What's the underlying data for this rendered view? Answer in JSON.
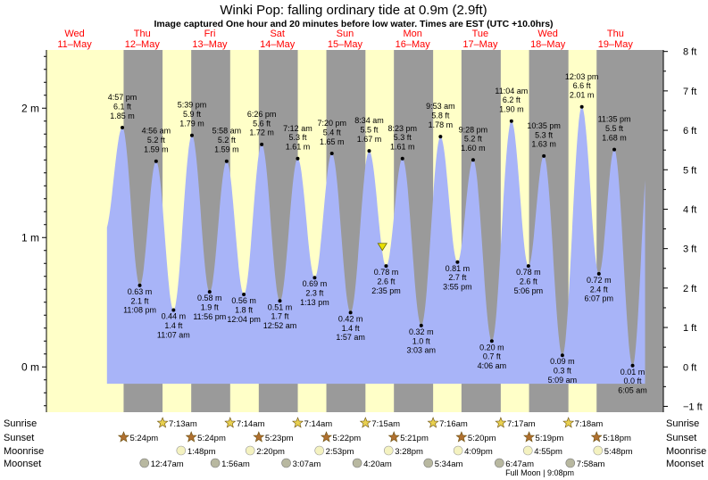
{
  "title": "Winki Pop: falling  ordinary tide at 0.9m (2.9ft)",
  "subtitle": "Image captured One hour and 20 minutes before low water. Times are EST (UTC +10.0hrs)",
  "colors": {
    "day": "#ffffc8",
    "night": "#9a9a9a",
    "tide_fill": "#a8b4f8",
    "day_header": "#ff0000",
    "current_marker": "#e8e000",
    "sun_star": "#c8a020",
    "moon_disc": "#f4f2c0"
  },
  "chart_data": {
    "type": "area",
    "title": "Winki Pop: falling  ordinary tide at 0.9m (2.9ft)",
    "y_left_unit": "m",
    "y_left_ticks": [
      "0 m",
      "1 m",
      "2 m"
    ],
    "y_right_ticks": [
      "−1 ft",
      "0 ft",
      "1 ft",
      "2 ft",
      "3 ft",
      "4 ft",
      "5 ft",
      "6 ft",
      "7 ft",
      "8 ft"
    ],
    "ylim_m": [
      -0.35,
      2.45
    ],
    "xlim_hours_from_11may_0000": [
      -10,
      209
    ],
    "days": [
      {
        "weekday": "Wed",
        "date": "11–May"
      },
      {
        "weekday": "Thu",
        "date": "12–May"
      },
      {
        "weekday": "Fri",
        "date": "13–May"
      },
      {
        "weekday": "Sat",
        "date": "14–May"
      },
      {
        "weekday": "Sun",
        "date": "15–May"
      },
      {
        "weekday": "Mon",
        "date": "16–May"
      },
      {
        "weekday": "Tue",
        "date": "17–May"
      },
      {
        "weekday": "Wed",
        "date": "18–May"
      },
      {
        "weekday": "Thu",
        "date": "19–May"
      }
    ],
    "tides": [
      {
        "kind": "high",
        "time": "4:57 pm",
        "m": "1.85 m",
        "ft": "6.1 ft",
        "value": 1.85
      },
      {
        "kind": "low",
        "time": "11:08 pm",
        "m": "0.63 m",
        "ft": "2.1 ft",
        "value": 0.63
      },
      {
        "kind": "high",
        "time": "4:56 am",
        "m": "1.59 m",
        "ft": "5.2 ft",
        "value": 1.59
      },
      {
        "kind": "low",
        "time": "11:07 am",
        "m": "0.44 m",
        "ft": "1.4 ft",
        "value": 0.44
      },
      {
        "kind": "high",
        "time": "5:39 pm",
        "m": "1.79 m",
        "ft": "5.9 ft",
        "value": 1.79
      },
      {
        "kind": "low",
        "time": "11:56 pm",
        "m": "0.58 m",
        "ft": "1.9 ft",
        "value": 0.58
      },
      {
        "kind": "high",
        "time": "5:58 am",
        "m": "1.59 m",
        "ft": "5.2 ft",
        "value": 1.59
      },
      {
        "kind": "low",
        "time": "12:04 pm",
        "m": "0.56 m",
        "ft": "1.8 ft",
        "value": 0.56
      },
      {
        "kind": "high",
        "time": "6:26 pm",
        "m": "1.72 m",
        "ft": "5.6 ft",
        "value": 1.72
      },
      {
        "kind": "low",
        "time": "12:52 am",
        "m": "0.51 m",
        "ft": "1.7 ft",
        "value": 0.51
      },
      {
        "kind": "high",
        "time": "7:12 am",
        "m": "1.61 m",
        "ft": "5.3 ft",
        "value": 1.61
      },
      {
        "kind": "low",
        "time": "1:13 pm",
        "m": "0.69 m",
        "ft": "2.3 ft",
        "value": 0.69
      },
      {
        "kind": "high",
        "time": "7:20 pm",
        "m": "1.65 m",
        "ft": "5.4 ft",
        "value": 1.65
      },
      {
        "kind": "low",
        "time": "1:57 am",
        "m": "0.42 m",
        "ft": "1.4 ft",
        "value": 0.42
      },
      {
        "kind": "high",
        "time": "8:34 am",
        "m": "1.67 m",
        "ft": "5.5 ft",
        "value": 1.67
      },
      {
        "kind": "low",
        "time": "2:35 pm",
        "m": "0.78 m",
        "ft": "2.6 ft",
        "value": 0.78
      },
      {
        "kind": "high",
        "time": "8:23 pm",
        "m": "1.61 m",
        "ft": "5.3 ft",
        "value": 1.61
      },
      {
        "kind": "low",
        "time": "3:03 am",
        "m": "0.32 m",
        "ft": "1.0 ft",
        "value": 0.32
      },
      {
        "kind": "high",
        "time": "9:53 am",
        "m": "1.78 m",
        "ft": "5.8 ft",
        "value": 1.78
      },
      {
        "kind": "low",
        "time": "3:55 pm",
        "m": "0.81 m",
        "ft": "2.7 ft",
        "value": 0.81
      },
      {
        "kind": "high",
        "time": "9:28 pm",
        "m": "1.60 m",
        "ft": "5.2 ft",
        "value": 1.6
      },
      {
        "kind": "low",
        "time": "4:06 am",
        "m": "0.20 m",
        "ft": "0.7 ft",
        "value": 0.2
      },
      {
        "kind": "high",
        "time": "11:04 am",
        "m": "1.90 m",
        "ft": "6.2 ft",
        "value": 1.9
      },
      {
        "kind": "low",
        "time": "5:06 pm",
        "m": "0.78 m",
        "ft": "2.6 ft",
        "value": 0.78
      },
      {
        "kind": "high",
        "time": "10:35 pm",
        "m": "1.63 m",
        "ft": "5.3 ft",
        "value": 1.63
      },
      {
        "kind": "low",
        "time": "5:09 am",
        "m": "0.09 m",
        "ft": "0.3 ft",
        "value": 0.09
      },
      {
        "kind": "high",
        "time": "12:03 pm",
        "m": "2.01 m",
        "ft": "6.6 ft",
        "value": 2.01
      },
      {
        "kind": "low",
        "time": "6:07 pm",
        "m": "0.72 m",
        "ft": "2.4 ft",
        "value": 0.72
      },
      {
        "kind": "high",
        "time": "11:35 pm",
        "m": "1.68 m",
        "ft": "5.5 ft",
        "value": 1.68
      },
      {
        "kind": "low",
        "time": "6:05 am",
        "m": "0.01 m",
        "ft": "0.0 ft",
        "value": 0.01
      }
    ],
    "tide_times_hours": [
      16.95,
      23.13,
      28.93,
      35.12,
      41.65,
      47.93,
      53.97,
      60.07,
      66.43,
      72.87,
      79.2,
      85.22,
      91.33,
      97.95,
      104.57,
      110.58,
      116.38,
      123.05,
      129.88,
      135.92,
      141.47,
      148.1,
      155.07,
      161.1,
      166.58,
      173.15,
      180.05,
      186.12,
      191.58,
      198.08
    ],
    "current": {
      "hours": 109.25,
      "value": 0.9,
      "label": "falling  ordinary tide at 0.9m (2.9ft)"
    },
    "nights": [
      {
        "sunset": "5:24pm",
        "sunrise": "7:13am"
      },
      {
        "sunset": "5:24pm",
        "sunrise": "7:14am"
      },
      {
        "sunset": "5:23pm",
        "sunrise": "7:14am"
      },
      {
        "sunset": "5:22pm",
        "sunrise": "7:15am"
      },
      {
        "sunset": "5:21pm",
        "sunrise": "7:16am"
      },
      {
        "sunset": "5:20pm",
        "sunrise": "7:17am"
      },
      {
        "sunset": "5:19pm",
        "sunrise": "7:18am"
      },
      {
        "sunset": "5:18pm",
        "sunrise": ""
      }
    ],
    "sunrise_hours": [
      31.22,
      55.23,
      79.23,
      103.25,
      127.27,
      151.28,
      175.3
    ],
    "sunset_hours": [
      17.4,
      41.4,
      65.38,
      89.37,
      113.35,
      137.33,
      161.32,
      185.3
    ],
    "moonrise": [
      {
        "time": "1:48pm",
        "hours": 37.8
      },
      {
        "time": "2:20pm",
        "hours": 62.33
      },
      {
        "time": "2:53pm",
        "hours": 86.88
      },
      {
        "time": "3:28pm",
        "hours": 111.47
      },
      {
        "time": "4:09pm",
        "hours": 136.15
      },
      {
        "time": "4:55pm",
        "hours": 160.92
      },
      {
        "time": "5:48pm",
        "hours": 185.8
      }
    ],
    "moonset": [
      {
        "time": "12:47am",
        "hours": 24.78
      },
      {
        "time": "1:56am",
        "hours": 49.93
      },
      {
        "time": "3:07am",
        "hours": 75.12
      },
      {
        "time": "4:20am",
        "hours": 100.33
      },
      {
        "time": "5:34am",
        "hours": 125.57
      },
      {
        "time": "6:47am",
        "hours": 150.78
      },
      {
        "time": "7:58am",
        "hours": 175.97
      }
    ],
    "full_moon": {
      "label": "Full Moon | 9:08pm",
      "hours": 165.13
    },
    "row_labels": [
      "Sunrise",
      "Sunset",
      "Moonrise",
      "Moonset"
    ]
  }
}
